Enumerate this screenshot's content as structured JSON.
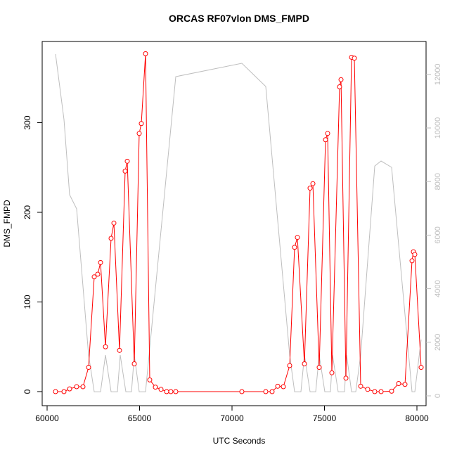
{
  "chart_data": {
    "type": "line",
    "title": "ORCAS RF07vlon DMS_FMPD",
    "xlabel": "UTC Seconds",
    "ylabel": "DMS_FMPD",
    "xlim": [
      59734,
      80494
    ],
    "ylim": [
      -15.7,
      390.6
    ],
    "y2lim": [
      -367,
      13228
    ],
    "xticks": [
      60000,
      65000,
      70000,
      75000,
      80000
    ],
    "yticks": [
      0,
      100,
      200,
      300
    ],
    "y2ticks": [
      0,
      2000,
      4000,
      6000,
      8000,
      10000,
      12000
    ],
    "grid": false,
    "series": [
      {
        "color": "#ff0000",
        "markers": true,
        "x": [
          60456,
          60913,
          61217,
          61597,
          61939,
          62243,
          62548,
          62738,
          62890,
          63156,
          63460,
          63612,
          63916,
          64221,
          64335,
          64715,
          64981,
          65095,
          65323,
          65551,
          65856,
          66160,
          66464,
          66692,
          66958,
          70532,
          71825,
          72167,
          72471,
          72776,
          73118,
          73384,
          73536,
          73916,
          74221,
          74373,
          74715,
          75057,
          75171,
          75399,
          75817,
          75894,
          76160,
          76464,
          76616,
          76958,
          77338,
          77719,
          78061,
          78631,
          79011,
          79354,
          79734,
          79810,
          79886,
          80228
        ],
        "values": [
          0,
          0,
          3,
          5.5,
          5.5,
          27,
          128,
          131,
          144,
          50,
          171,
          188,
          46,
          246,
          257,
          31,
          288,
          299,
          377,
          13,
          5,
          2.5,
          0,
          0,
          0,
          0,
          0,
          0,
          6,
          5.5,
          29,
          161,
          172,
          31,
          227,
          232,
          27,
          281,
          288,
          21,
          340,
          348,
          15,
          373,
          372,
          6,
          2.5,
          0,
          0,
          0.5,
          9,
          8,
          146,
          156,
          153,
          27
        ]
      },
      {
        "color": "#bebebe",
        "axis": "y2",
        "markers": false,
        "x": [
          60456,
          60913,
          61217,
          61597,
          62243,
          62548,
          62890,
          63156,
          63460,
          63802,
          63954,
          64259,
          64563,
          64715,
          64981,
          65323,
          66958,
          70532,
          71825,
          73118,
          73384,
          73726,
          73916,
          74221,
          74525,
          74715,
          75019,
          75323,
          75437,
          75741,
          76084,
          76198,
          76464,
          76692,
          76958,
          77719,
          78061,
          78631,
          79734,
          79886,
          80228
        ],
        "values": [
          12756,
          10315,
          7507,
          6982,
          1522,
          150,
          150,
          1522,
          150,
          150,
          1522,
          150,
          150,
          1522,
          150,
          150,
          11916,
          12415,
          11549,
          1522,
          150,
          150,
          1522,
          150,
          150,
          1522,
          150,
          150,
          1522,
          150,
          150,
          1522,
          150,
          150,
          1522,
          8580,
          8766,
          8530,
          150,
          150,
          2100
        ]
      }
    ]
  }
}
